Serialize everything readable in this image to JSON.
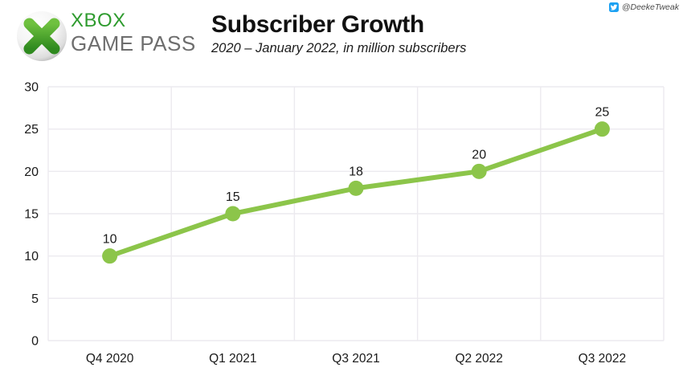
{
  "header": {
    "logo": {
      "line1": "XBOX",
      "line2": "GAME PASS"
    },
    "title": "Subscriber Growth",
    "subtitle": "2020 – January 2022, in million subscribers",
    "credit": "@DeekeTweak"
  },
  "colors": {
    "line": "#8CC54A",
    "xbox_green": "#2E9B2E",
    "logo_gray": "#6E6E6E",
    "twitter_blue": "#1DA1F2",
    "grid": "#ECEAEF",
    "text": "#1A1A1A"
  },
  "chart_data": {
    "type": "line",
    "title": "Subscriber Growth",
    "subtitle": "2020 – January 2022, in million subscribers",
    "categories": [
      "Q4 2020",
      "Q1 2021",
      "Q3 2021",
      "Q2 2022",
      "Q3 2022"
    ],
    "values": [
      10,
      15,
      18,
      20,
      25
    ],
    "yticks": [
      0,
      5,
      10,
      15,
      20,
      25,
      30
    ],
    "ylim": [
      0,
      30
    ],
    "xlabel": "",
    "ylabel": "million subscribers",
    "grid": true,
    "data_labels": true,
    "legend": "none"
  }
}
